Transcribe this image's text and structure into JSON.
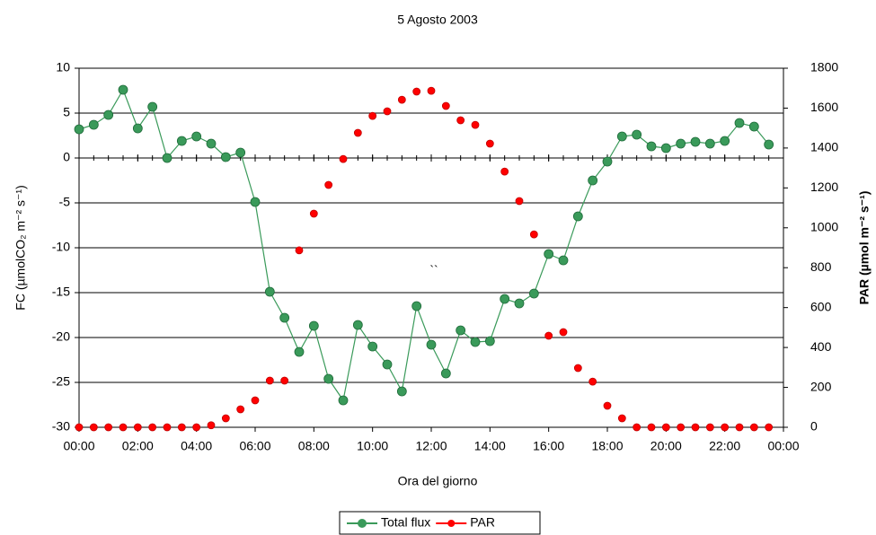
{
  "chart_data": {
    "type": "line",
    "title": "5 Agosto 2003",
    "xlabel": "Ora del giorno",
    "ylabel": "FC (µmolCO₂ m⁻² s⁻¹)",
    "y2label": "PAR (µmol m⁻² s⁻¹)",
    "annotation": "``",
    "x": [
      0,
      0.5,
      1,
      1.5,
      2,
      2.5,
      3,
      3.5,
      4,
      4.5,
      5,
      5.5,
      6,
      6.5,
      7,
      7.5,
      8,
      8.5,
      9,
      9.5,
      10,
      10.5,
      11,
      11.5,
      12,
      12.5,
      13,
      13.5,
      14,
      14.5,
      15,
      15.5,
      16,
      16.5,
      17,
      17.5,
      18,
      18.5,
      19,
      19.5,
      20,
      20.5,
      21,
      21.5,
      22,
      22.5,
      23,
      23.5
    ],
    "xlim": [
      0,
      24
    ],
    "xticks": [
      {
        "value": 0,
        "label": "00:00"
      },
      {
        "value": 2,
        "label": "02:00"
      },
      {
        "value": 4,
        "label": "04:00"
      },
      {
        "value": 6,
        "label": "06:00"
      },
      {
        "value": 8,
        "label": "08:00"
      },
      {
        "value": 10,
        "label": "10:00"
      },
      {
        "value": 12,
        "label": "12:00"
      },
      {
        "value": 14,
        "label": "14:00"
      },
      {
        "value": 16,
        "label": "16:00"
      },
      {
        "value": 18,
        "label": "18:00"
      },
      {
        "value": 20,
        "label": "20:00"
      },
      {
        "value": 22,
        "label": "22:00"
      },
      {
        "value": 24,
        "label": "00:00"
      }
    ],
    "ylim": [
      -30,
      10
    ],
    "yticks": [
      -30,
      -25,
      -20,
      -15,
      -10,
      -5,
      0,
      5,
      10
    ],
    "y2lim": [
      0,
      1800
    ],
    "y2ticks": [
      0,
      200,
      400,
      600,
      800,
      1000,
      1200,
      1400,
      1600,
      1800
    ],
    "grid": true,
    "legend": "bottom",
    "series": [
      {
        "name": "Total flux",
        "color": "#3a9a5a",
        "values": [
          3.2,
          3.7,
          4.8,
          7.6,
          3.3,
          5.7,
          0,
          1.9,
          2.4,
          1.6,
          0.1,
          0.6,
          -4.9,
          -14.9,
          -17.8,
          -21.6,
          -18.7,
          -24.6,
          -27,
          -18.6,
          -21,
          -23,
          -26,
          -16.5,
          -20.8,
          -24,
          -19.2,
          -20.5,
          -20.4,
          -15.7,
          -16.2,
          -15.1,
          -10.7,
          -11.4,
          -6.5,
          -2.5,
          -0.4,
          2.4,
          2.6,
          1.3,
          1.1,
          1.6,
          1.8,
          1.6,
          1.9,
          3.9,
          3.5,
          1.5
        ]
      },
      {
        "name": "PAR",
        "color": "#ff0000",
        "axis": "y2",
        "values": [
          0,
          0,
          0,
          0,
          0,
          0,
          0,
          0,
          0,
          10,
          45,
          90,
          135,
          234,
          234,
          887,
          1071,
          1215,
          1345,
          1476,
          1561,
          1584,
          1642,
          1683,
          1687,
          1611,
          1539,
          1516,
          1422,
          1282,
          1134,
          967,
          459,
          477,
          297,
          229,
          108,
          45,
          0,
          0,
          0,
          0,
          0,
          0,
          0,
          0,
          0,
          0
        ]
      }
    ]
  }
}
